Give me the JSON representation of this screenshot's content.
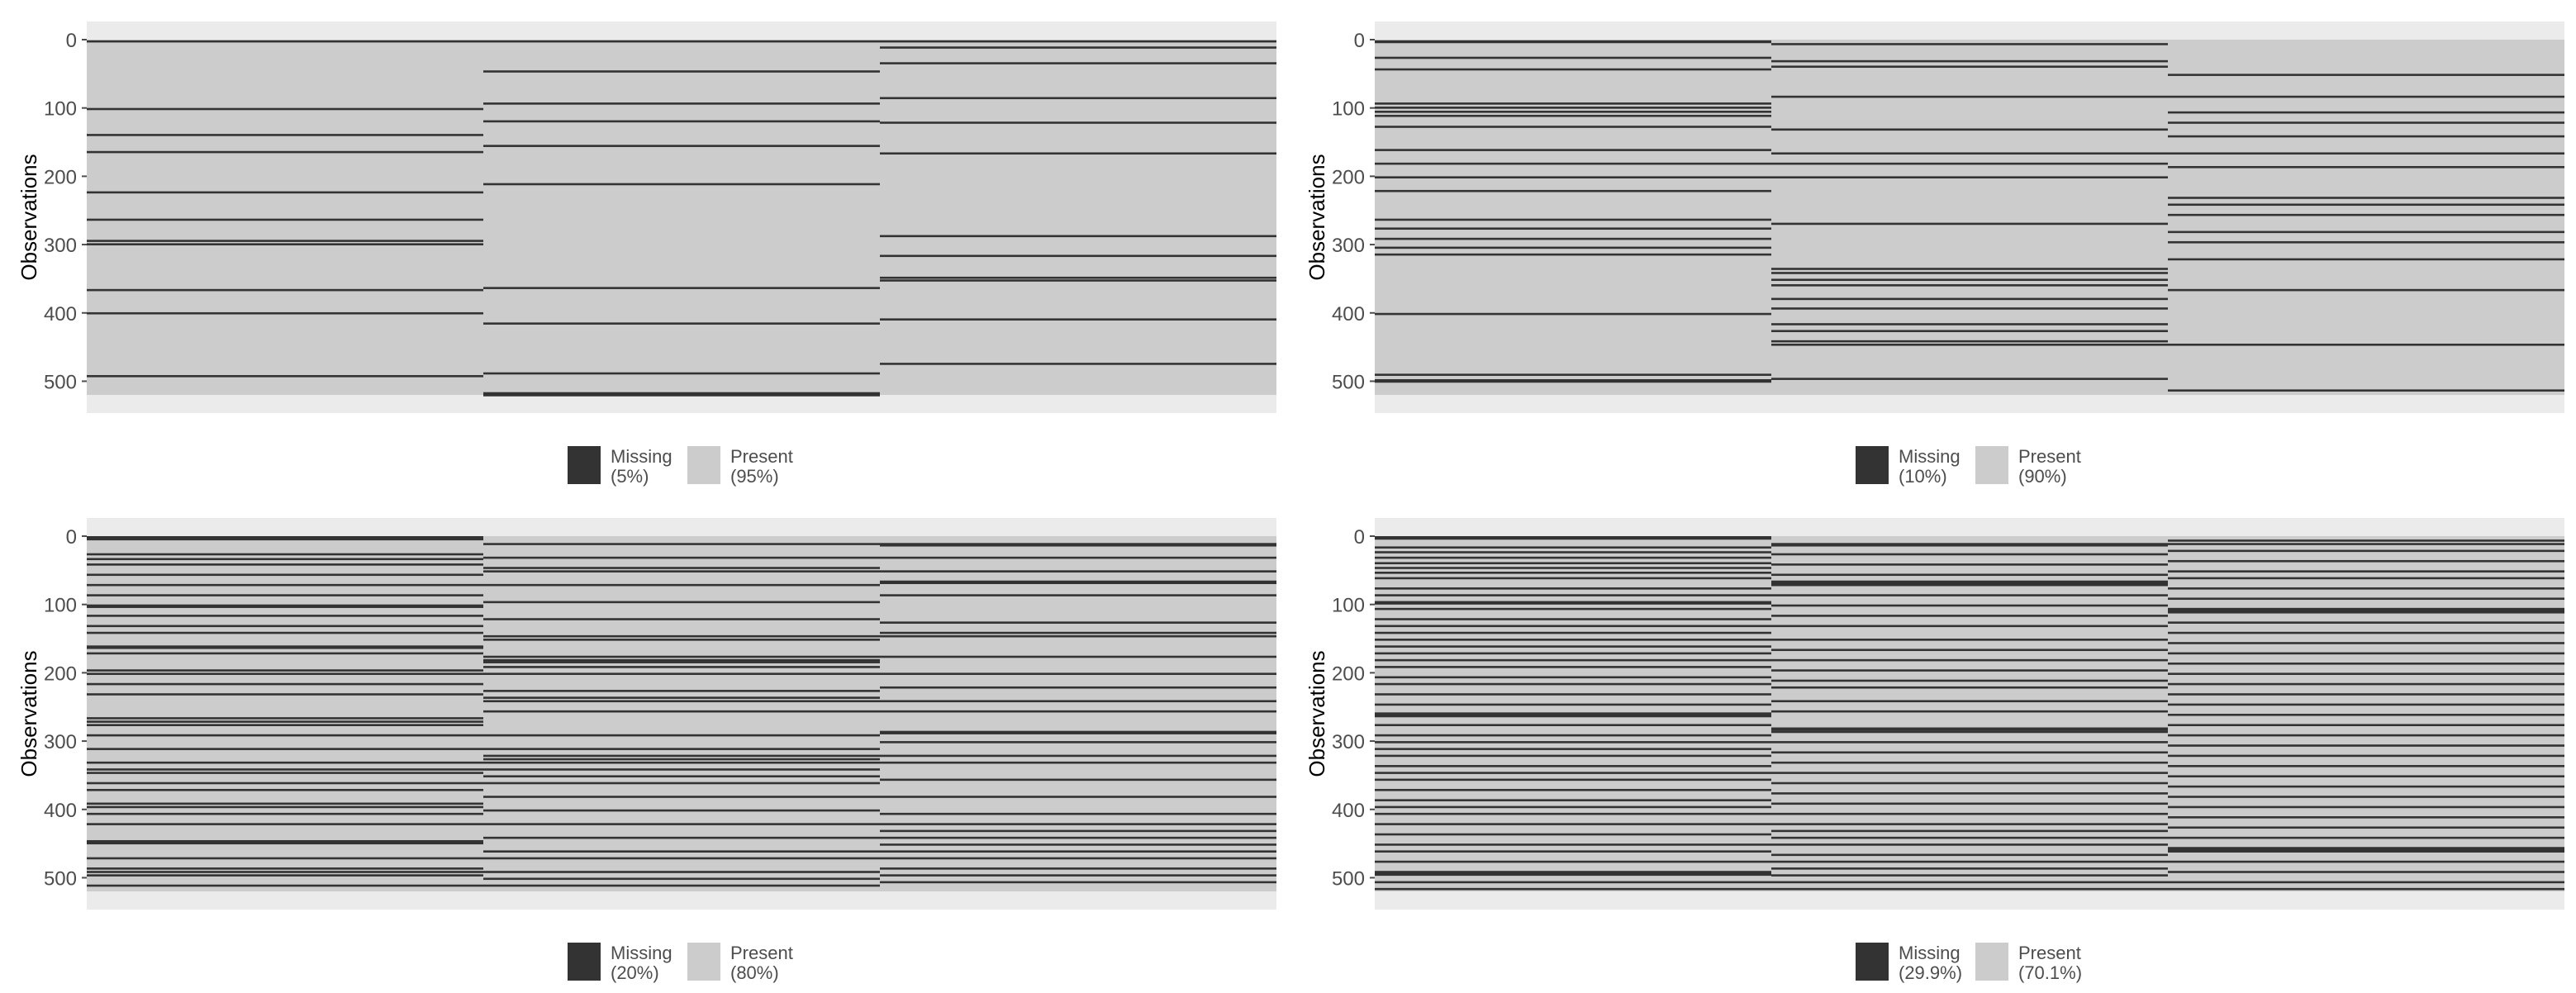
{
  "colors": {
    "missing": "#333333",
    "present": "#cccccc",
    "panel_bg": "#ebebeb",
    "text": "#4d4d4d"
  },
  "chart_data": [
    {
      "type": "heatmap",
      "title": "",
      "xlabel": "",
      "ylabel": "Observations",
      "y_ticks": [
        "0",
        "100",
        "200",
        "300",
        "400",
        "500"
      ],
      "ylim": [
        0,
        520
      ],
      "columns": 3,
      "legend": {
        "position": "bottom",
        "missing_label": "Missing",
        "missing_pct": "(5%)",
        "present_label": "Present",
        "present_pct": "(95%)"
      },
      "missing_rows": [
        [
          1,
          100,
          138,
          163,
          222,
          262,
          293,
          298,
          365,
          399,
          491
        ],
        [
          1,
          45,
          92,
          118,
          154,
          210,
          362,
          414,
          487,
          516,
          517,
          518,
          519
        ],
        [
          1,
          10,
          33,
          84,
          120,
          165,
          286,
          315,
          347,
          351,
          408,
          473
        ]
      ]
    },
    {
      "type": "heatmap",
      "title": "",
      "xlabel": "",
      "ylabel": "Observations",
      "y_ticks": [
        "0",
        "100",
        "200",
        "300",
        "400",
        "500"
      ],
      "ylim": [
        0,
        520
      ],
      "columns": 3,
      "legend": {
        "position": "bottom",
        "missing_label": "Missing",
        "missing_pct": "(10%)",
        "present_label": "Present",
        "present_pct": "(90%)"
      },
      "missing_rows": [
        [
          1,
          2,
          25,
          42,
          92,
          98,
          104,
          110,
          126,
          160,
          180,
          200,
          220,
          262,
          275,
          290,
          303,
          313,
          400,
          489,
          497,
          499
        ],
        [
          5,
          30,
          38,
          82,
          130,
          165,
          180,
          200,
          268,
          334,
          340,
          350,
          358,
          378,
          392,
          415,
          425,
          440,
          445,
          495
        ],
        [
          50,
          82,
          105,
          120,
          140,
          165,
          185,
          230,
          240,
          255,
          280,
          295,
          320,
          365,
          445,
          512
        ]
      ]
    },
    {
      "type": "heatmap",
      "title": "",
      "xlabel": "",
      "ylabel": "Observations",
      "y_ticks": [
        "0",
        "100",
        "200",
        "300",
        "400",
        "500"
      ],
      "ylim": [
        0,
        520
      ],
      "columns": 3,
      "legend": {
        "position": "bottom",
        "missing_label": "Missing",
        "missing_pct": "(20%)",
        "present_label": "Present",
        "present_pct": "(80%)"
      },
      "missing_rows": [
        [
          0,
          1,
          2,
          3,
          25,
          32,
          40,
          55,
          70,
          85,
          100,
          102,
          115,
          130,
          140,
          160,
          162,
          170,
          195,
          200,
          215,
          230,
          265,
          270,
          275,
          290,
          310,
          330,
          340,
          345,
          360,
          370,
          390,
          395,
          405,
          420,
          445,
          448,
          470,
          485,
          490,
          495,
          510
        ],
        [
          10,
          30,
          45,
          50,
          70,
          95,
          120,
          145,
          150,
          175,
          180,
          183,
          190,
          200,
          225,
          235,
          240,
          255,
          290,
          310,
          320,
          325,
          330,
          340,
          350,
          360,
          380,
          400,
          420,
          440,
          460,
          470,
          490,
          500,
          510
        ],
        [
          10,
          12,
          30,
          50,
          65,
          67,
          85,
          125,
          140,
          145,
          175,
          200,
          220,
          240,
          255,
          285,
          287,
          300,
          320,
          330,
          355,
          380,
          405,
          420,
          430,
          440,
          450,
          460,
          470,
          485,
          495,
          505
        ]
      ]
    },
    {
      "type": "heatmap",
      "title": "",
      "xlabel": "",
      "ylabel": "Observations",
      "y_ticks": [
        "0",
        "100",
        "200",
        "300",
        "400",
        "500"
      ],
      "ylim": [
        0,
        520
      ],
      "columns": 3,
      "legend": {
        "position": "bottom",
        "missing_label": "Missing",
        "missing_pct": "(29.9%)",
        "present_label": "Present",
        "present_pct": "(70.1%)"
      },
      "missing_rows": [
        [
          0,
          1,
          2,
          15,
          22,
          30,
          38,
          45,
          52,
          60,
          75,
          85,
          95,
          97,
          105,
          120,
          130,
          140,
          150,
          160,
          170,
          180,
          190,
          205,
          215,
          230,
          245,
          258,
          260,
          262,
          275,
          290,
          300,
          310,
          320,
          335,
          345,
          355,
          370,
          385,
          395,
          405,
          420,
          435,
          450,
          460,
          475,
          490,
          492,
          494,
          505,
          515
        ],
        [
          10,
          12,
          25,
          40,
          55,
          65,
          67,
          70,
          85,
          100,
          115,
          130,
          150,
          165,
          180,
          195,
          210,
          220,
          240,
          255,
          280,
          282,
          285,
          300,
          315,
          330,
          345,
          360,
          375,
          390,
          405,
          420,
          430,
          440,
          450,
          465,
          475,
          485,
          495,
          505,
          515
        ],
        [
          5,
          10,
          20,
          35,
          50,
          60,
          75,
          90,
          105,
          107,
          110,
          125,
          140,
          155,
          170,
          185,
          200,
          215,
          230,
          245,
          260,
          275,
          290,
          305,
          320,
          335,
          350,
          365,
          380,
          395,
          410,
          425,
          440,
          455,
          457,
          460,
          475,
          490,
          505,
          515
        ]
      ]
    }
  ]
}
